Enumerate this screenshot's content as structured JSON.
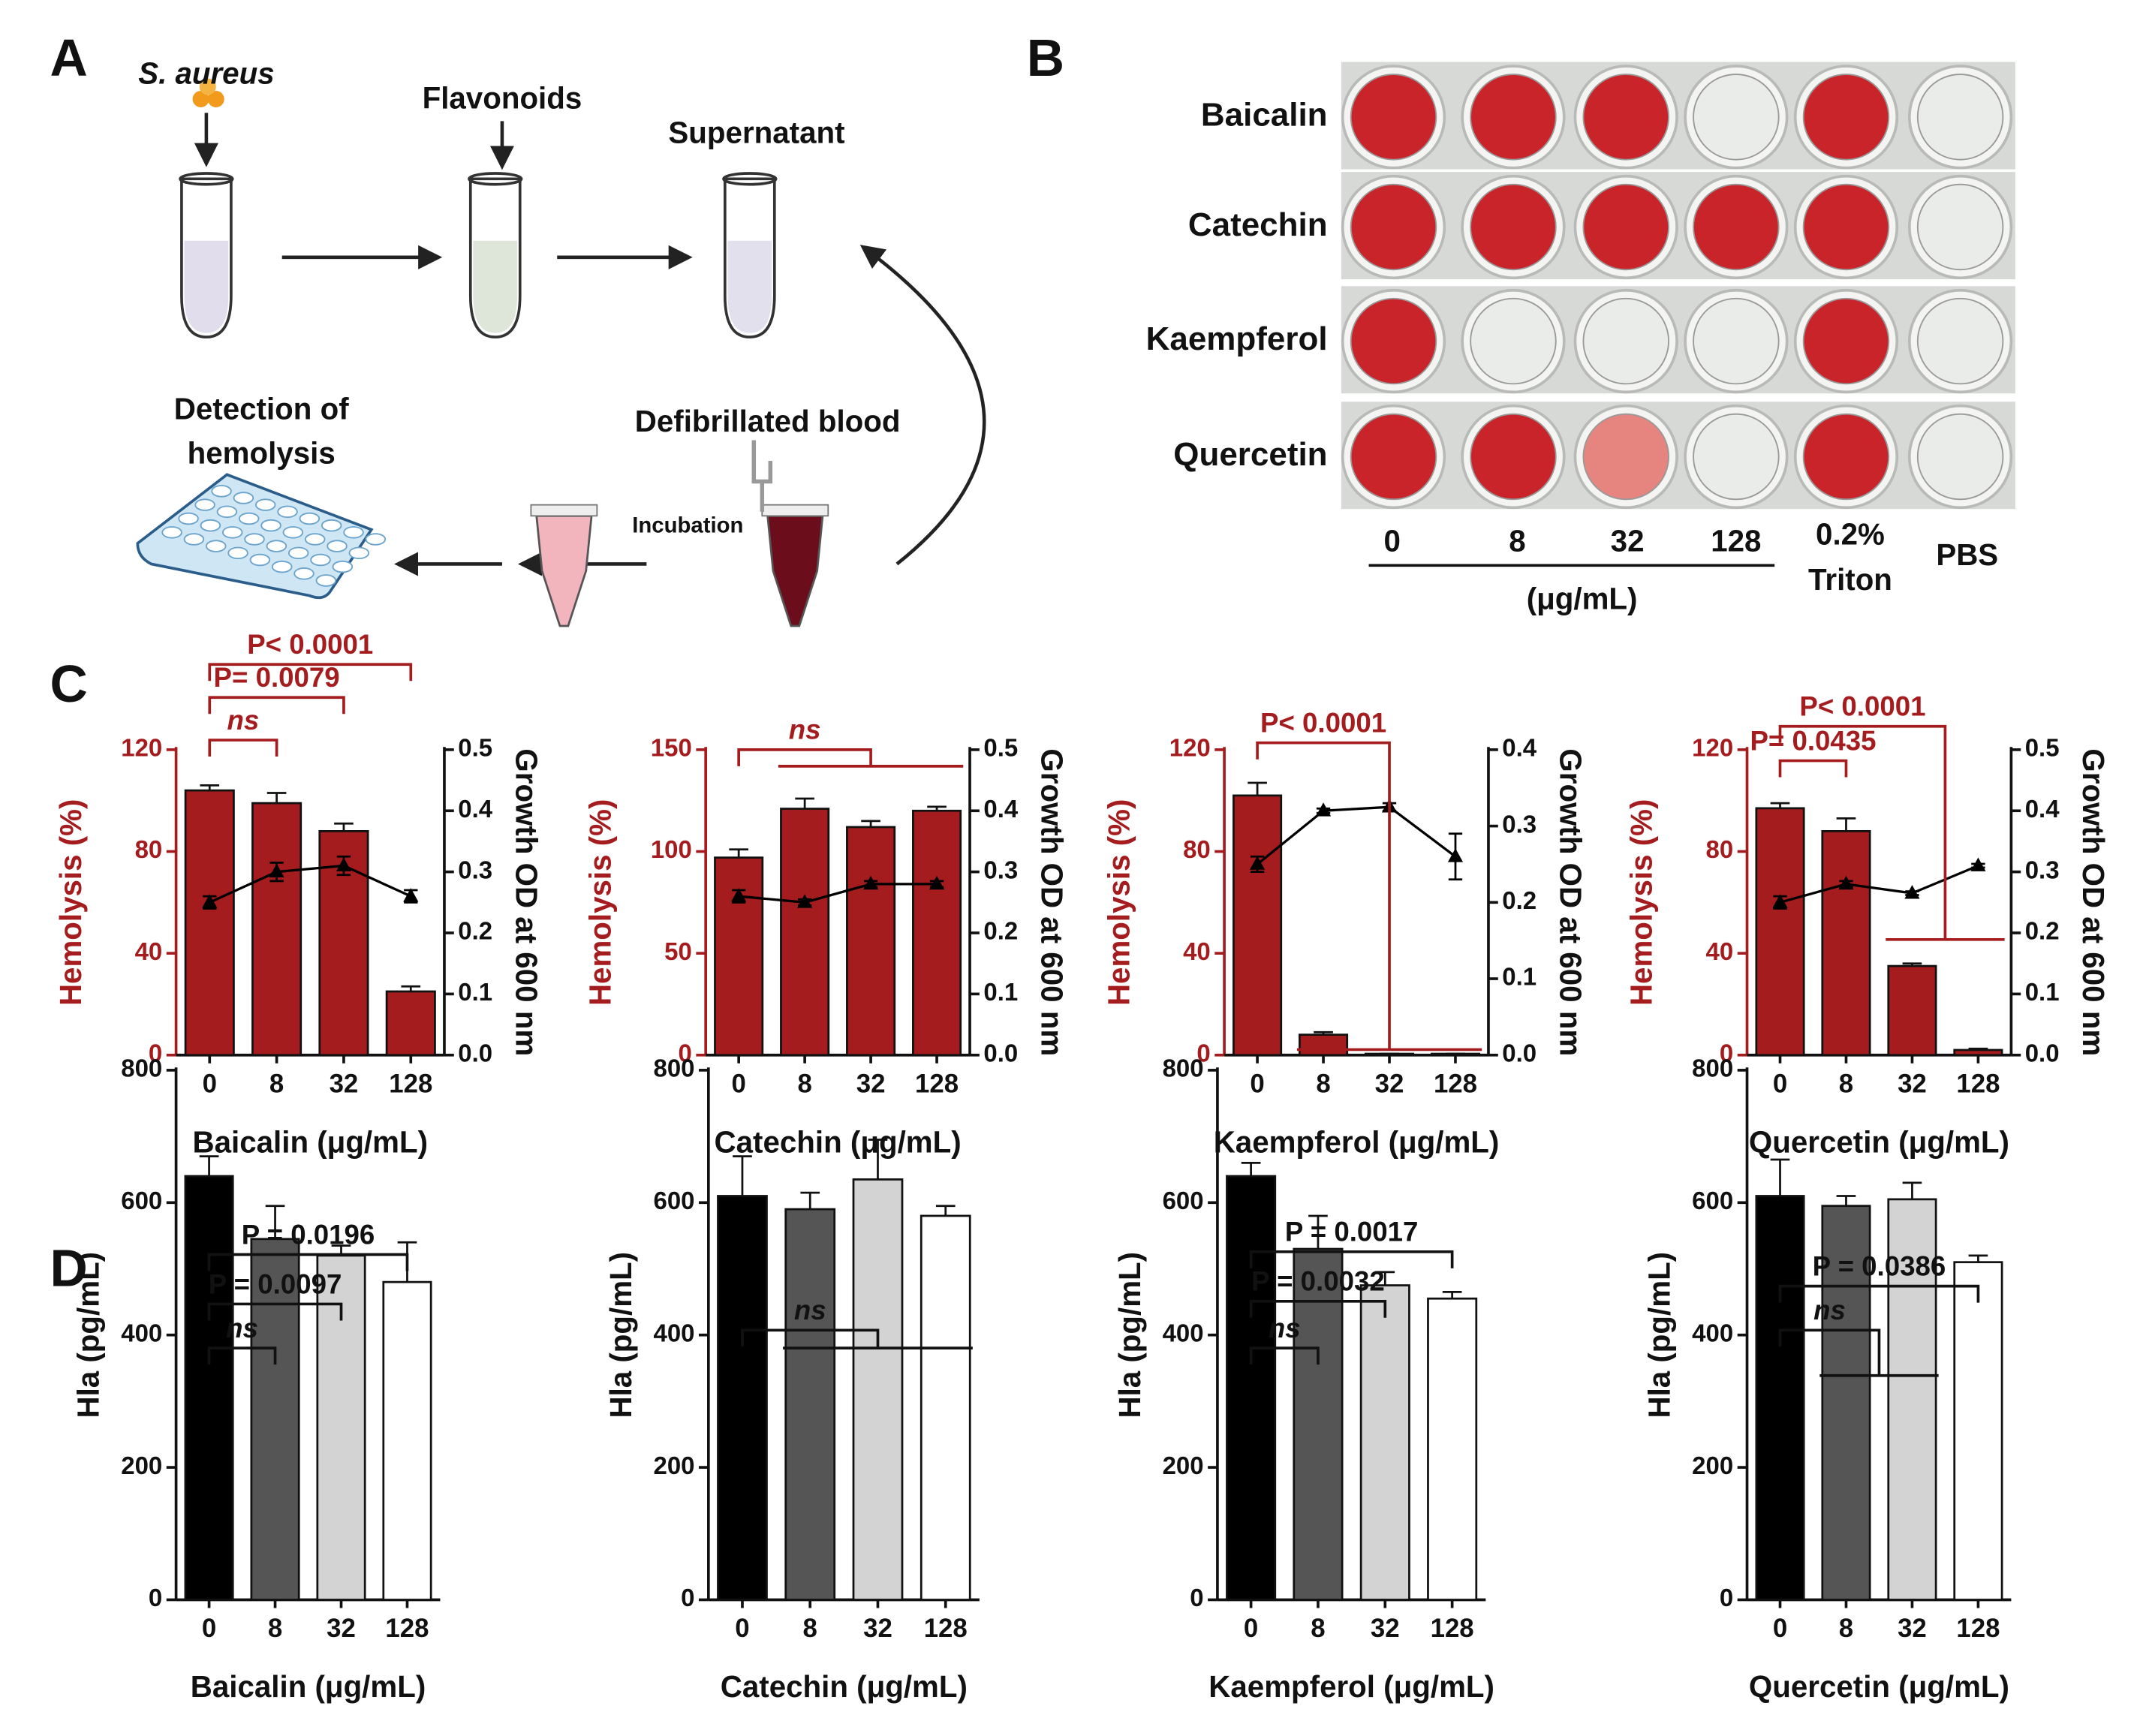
{
  "panel_labels": [
    "A",
    "B",
    "C",
    "D"
  ],
  "diagram": {
    "bacteria": "S. aureus",
    "flavonoids": "Flavonoids",
    "supernatant": "Supernatant",
    "blood": "Defibrillated blood",
    "incubation": "Incubation",
    "detection": [
      "Detection of",
      "hemolysis"
    ]
  },
  "plate": {
    "rows": [
      "Baicalin",
      "Catechin",
      "Kaempferol",
      "Quercetin"
    ],
    "concentrations": [
      "0",
      "8",
      "32",
      "128"
    ],
    "unit": "(μg/mL)",
    "positive_control": [
      "0.2%",
      "Triton"
    ],
    "negative_control": "PBS"
  },
  "chart_data": [
    {
      "type": "bar",
      "categories": [
        "0",
        "8",
        "32",
        "128"
      ],
      "xlabel": "Baicalin (μg/mL)",
      "ylabel": "Hemolysis (%)",
      "y2label": "Growth OD at 600 nm",
      "ylim": [
        0,
        120
      ],
      "yticks": [
        0,
        40,
        80,
        120
      ],
      "y2lim": [
        0,
        0.5
      ],
      "y2ticks": [
        {
          "value": 0,
          "label": "0.0"
        },
        0.1,
        0.2,
        0.3,
        0.4,
        0.5
      ],
      "series": [
        {
          "type": "bar",
          "color": "#a51c1f",
          "values": [
            104,
            99,
            88,
            25
          ],
          "errors": [
            2,
            4,
            3,
            2
          ]
        },
        {
          "type": "line",
          "axis": "y2",
          "color": "#000000",
          "values": [
            0.25,
            0.3,
            0.31,
            0.26
          ],
          "errors": [
            0.01,
            0.015,
            0.015,
            0.01
          ]
        }
      ],
      "annotations": [
        "P< 0.0001",
        "P= 0.0079",
        "ns"
      ]
    },
    {
      "type": "bar",
      "categories": [
        "0",
        "8",
        "32",
        "128"
      ],
      "xlabel": "Catechin (μg/mL)",
      "ylabel": "Hemolysis (%)",
      "y2label": "Growth OD at 600 nm",
      "ylim": [
        0,
        150
      ],
      "yticks": [
        0,
        50,
        100,
        150
      ],
      "y2lim": [
        0,
        0.5
      ],
      "y2ticks": [
        {
          "value": 0,
          "label": "0.0"
        },
        0.1,
        0.2,
        0.3,
        0.4,
        0.5
      ],
      "series": [
        {
          "type": "bar",
          "color": "#a51c1f",
          "values": [
            97,
            121,
            112,
            120
          ],
          "errors": [
            4,
            5,
            3,
            2
          ]
        },
        {
          "type": "line",
          "axis": "y2",
          "color": "#000000",
          "values": [
            0.26,
            0.25,
            0.28,
            0.28
          ],
          "errors": [
            0.01,
            0.005,
            0.005,
            0.005
          ]
        }
      ],
      "annotations": [
        "ns"
      ]
    },
    {
      "type": "bar",
      "categories": [
        "0",
        "8",
        "32",
        "128"
      ],
      "xlabel": "Kaempferol (μg/mL)",
      "ylabel": "Hemolysis (%)",
      "y2label": "Growth OD at 600 nm",
      "ylim": [
        0,
        120
      ],
      "yticks": [
        0,
        40,
        80,
        120
      ],
      "y2lim": [
        0,
        0.4
      ],
      "y2ticks": [
        {
          "value": 0,
          "label": "0.0"
        },
        0.1,
        0.2,
        0.3,
        0.4
      ],
      "series": [
        {
          "type": "bar",
          "color": "#a51c1f",
          "values": [
            102,
            8,
            0.5,
            0.5
          ],
          "errors": [
            5,
            1,
            0,
            0
          ]
        },
        {
          "type": "line",
          "axis": "y2",
          "color": "#000000",
          "values": [
            0.25,
            0.32,
            0.325,
            0.26
          ],
          "errors": [
            0.01,
            0.003,
            0.005,
            0.03
          ]
        }
      ],
      "annotations": [
        "P< 0.0001"
      ]
    },
    {
      "type": "bar",
      "categories": [
        "0",
        "8",
        "32",
        "128"
      ],
      "xlabel": "Quercetin (μg/mL)",
      "ylabel": "Hemolysis (%)",
      "y2label": "Growth OD at 600 nm",
      "ylim": [
        0,
        120
      ],
      "yticks": [
        0,
        40,
        80,
        120
      ],
      "y2lim": [
        0,
        0.5
      ],
      "y2ticks": [
        {
          "value": 0,
          "label": "0.0"
        },
        0.1,
        0.2,
        0.3,
        0.4,
        0.5
      ],
      "series": [
        {
          "type": "bar",
          "color": "#a51c1f",
          "values": [
            97,
            88,
            35,
            2
          ],
          "errors": [
            2,
            5,
            1,
            0.5
          ]
        },
        {
          "type": "line",
          "axis": "y2",
          "color": "#000000",
          "values": [
            0.25,
            0.28,
            0.265,
            0.31
          ],
          "errors": [
            0.01,
            0.005,
            0.003,
            0.003
          ]
        }
      ],
      "annotations": [
        "P< 0.0001",
        "P= 0.0435"
      ]
    },
    {
      "type": "bar",
      "categories": [
        "0",
        "8",
        "32",
        "128"
      ],
      "xlabel": "Baicalin (μg/mL)",
      "ylabel": "Hla (pg/mL)",
      "ylim": [
        0,
        800
      ],
      "yticks": [
        0,
        200,
        400,
        600,
        800
      ],
      "series": [
        {
          "type": "bar",
          "colors": [
            "#000000",
            "#555555",
            "#d3d3d3",
            "#ffffff"
          ],
          "values": [
            640,
            545,
            520,
            480
          ],
          "errors": [
            30,
            50,
            15,
            60
          ]
        }
      ],
      "annotations": [
        "P = 0.0196",
        "P = 0.0097",
        "ns"
      ]
    },
    {
      "type": "bar",
      "categories": [
        "0",
        "8",
        "32",
        "128"
      ],
      "xlabel": "Catechin (μg/mL)",
      "ylabel": "Hla (pg/mL)",
      "ylim": [
        0,
        800
      ],
      "yticks": [
        0,
        200,
        400,
        600,
        800
      ],
      "series": [
        {
          "type": "bar",
          "colors": [
            "#000000",
            "#555555",
            "#d3d3d3",
            "#ffffff"
          ],
          "values": [
            610,
            590,
            635,
            580
          ],
          "errors": [
            60,
            25,
            60,
            15
          ]
        }
      ],
      "annotations": [
        "ns"
      ]
    },
    {
      "type": "bar",
      "categories": [
        "0",
        "8",
        "32",
        "128"
      ],
      "xlabel": "Kaempferol (μg/mL)",
      "ylabel": "Hla (pg/mL)",
      "ylim": [
        0,
        800
      ],
      "yticks": [
        0,
        200,
        400,
        600,
        800
      ],
      "series": [
        {
          "type": "bar",
          "colors": [
            "#000000",
            "#555555",
            "#d3d3d3",
            "#ffffff"
          ],
          "values": [
            640,
            530,
            475,
            455
          ],
          "errors": [
            20,
            50,
            20,
            10
          ]
        }
      ],
      "annotations": [
        "P = 0.0017",
        "P = 0.0032",
        "ns"
      ]
    },
    {
      "type": "bar",
      "categories": [
        "0",
        "8",
        "32",
        "128"
      ],
      "xlabel": "Quercetin (μg/mL)",
      "ylabel": "Hla (pg/mL)",
      "ylim": [
        0,
        800
      ],
      "yticks": [
        0,
        200,
        400,
        600,
        800
      ],
      "series": [
        {
          "type": "bar",
          "colors": [
            "#000000",
            "#555555",
            "#d3d3d3",
            "#ffffff"
          ],
          "values": [
            610,
            595,
            605,
            510
          ],
          "errors": [
            55,
            15,
            25,
            10
          ]
        }
      ],
      "annotations": [
        "P = 0.0386",
        "ns"
      ]
    }
  ]
}
